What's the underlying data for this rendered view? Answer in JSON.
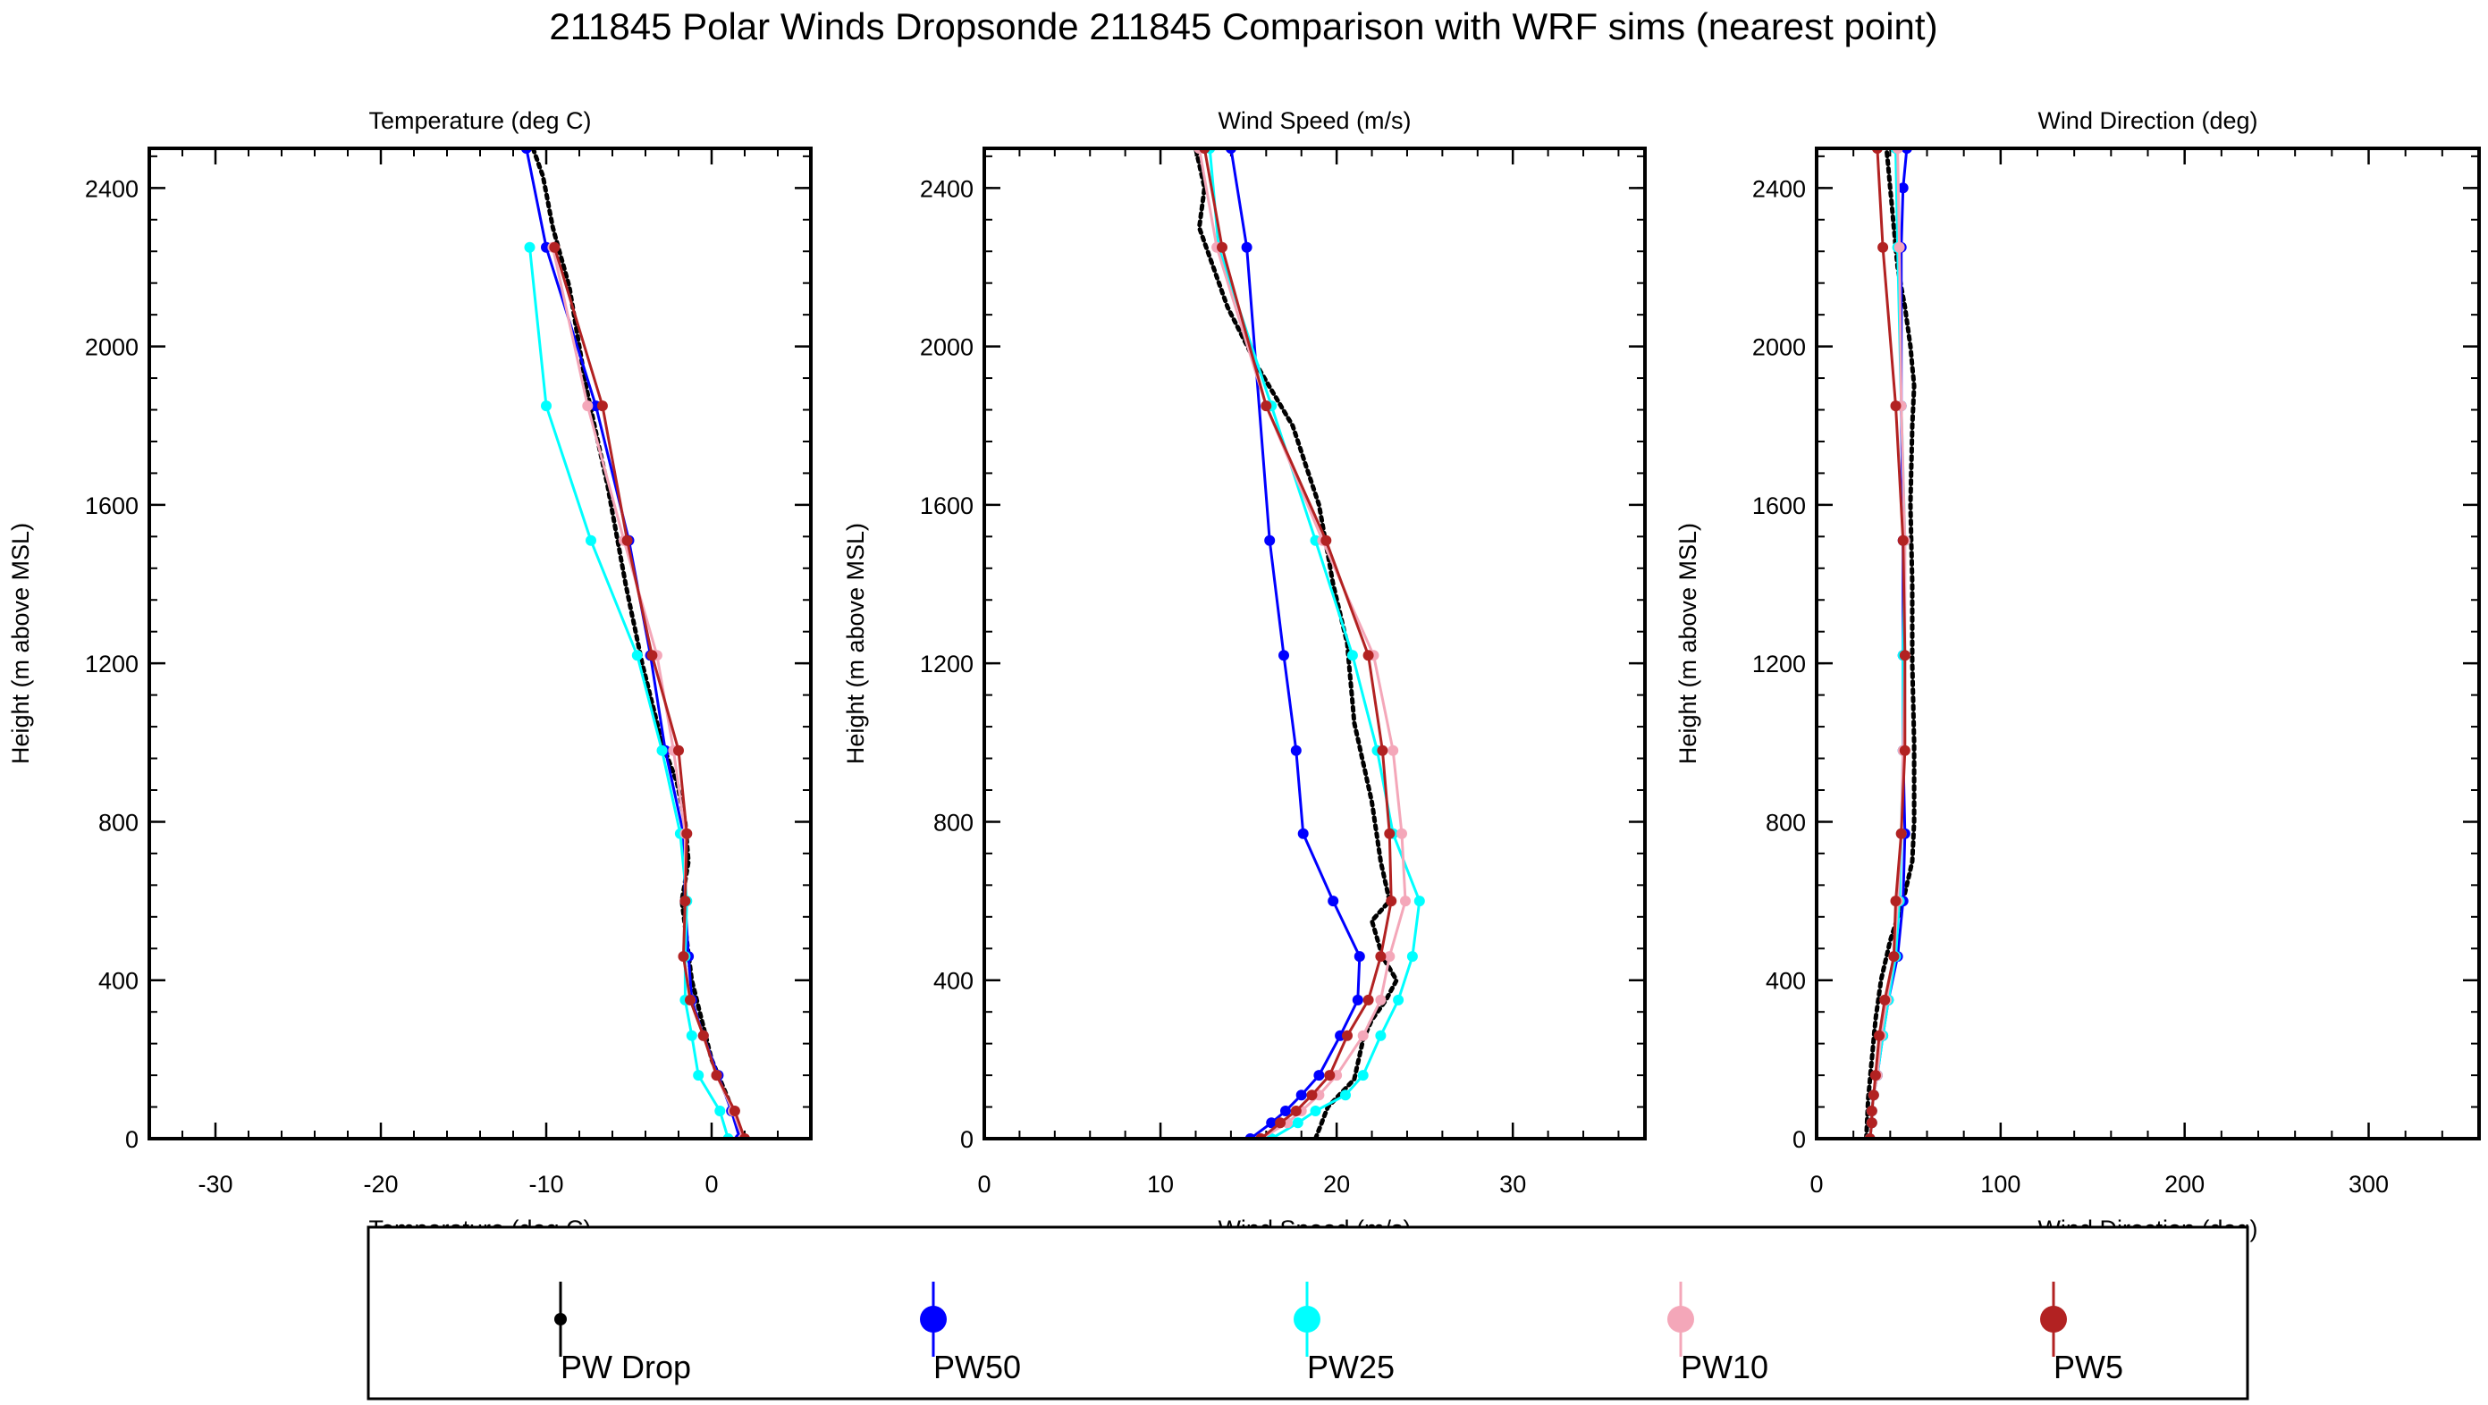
{
  "title": "211845 Polar Winds Dropsonde 211845 Comparison with WRF sims (nearest point)",
  "legend": [
    {
      "key": "drop",
      "label": "PW Drop",
      "color": "#000000"
    },
    {
      "key": "pw50",
      "label": "PW50",
      "color": "#0000ff"
    },
    {
      "key": "pw25",
      "label": "PW25",
      "color": "#00ffff"
    },
    {
      "key": "pw10",
      "label": "PW10",
      "color": "#f4a7b9"
    },
    {
      "key": "pw5",
      "label": "PW5",
      "color": "#b22222"
    }
  ],
  "chart_data": [
    {
      "type": "line",
      "title": "Temperature (deg C)",
      "xlabel": "Temperature (deg C)",
      "ylabel": "Height (m above MSL)",
      "xlim": [
        -34,
        6
      ],
      "ylim": [
        0,
        2500
      ],
      "xticks": [
        -30,
        -20,
        -10,
        0
      ],
      "yticks": [
        0,
        400,
        800,
        1200,
        1600,
        2000,
        2400
      ],
      "series": [
        {
          "key": "drop",
          "x": [
            1.8,
            1.0,
            0.0,
            -0.6,
            -1.2,
            -1.5,
            -1.8,
            -1.4,
            -1.6,
            -2.1,
            -3.0,
            -4.2,
            -5.2,
            -6.3,
            -7.6,
            -8.6,
            -9.6,
            -10.2,
            -10.8
          ],
          "y": [
            0,
            100,
            200,
            300,
            400,
            500,
            600,
            700,
            800,
            900,
            1000,
            1200,
            1400,
            1650,
            1900,
            2150,
            2300,
            2430,
            2500
          ]
        },
        {
          "key": "pw50",
          "x": [
            1.7,
            1.2,
            0.4,
            -0.5,
            -1.2,
            -1.4,
            -1.6,
            -1.7,
            -2.8,
            -3.7,
            -5.0,
            -7.0,
            -10.0,
            -11.2
          ],
          "y": [
            0,
            70,
            160,
            260,
            350,
            460,
            600,
            770,
            980,
            1220,
            1510,
            1850,
            2250,
            2500
          ]
        },
        {
          "key": "pw25",
          "x": [
            1.0,
            0.5,
            -0.8,
            -1.2,
            -1.6,
            -1.6,
            -1.5,
            -1.9,
            -3.0,
            -4.5,
            -7.3,
            -10.0,
            -11.0
          ],
          "y": [
            0,
            70,
            160,
            260,
            350,
            460,
            600,
            770,
            980,
            1220,
            1510,
            1850,
            2250
          ]
        },
        {
          "key": "pw10",
          "x": [
            1.9,
            1.3,
            0.3,
            -0.5,
            -1.3,
            -1.7,
            -1.6,
            -1.6,
            -2.3,
            -3.3,
            -5.3,
            -7.5,
            -9.6
          ],
          "y": [
            0,
            70,
            160,
            260,
            350,
            460,
            600,
            770,
            980,
            1220,
            1510,
            1850,
            2250
          ]
        },
        {
          "key": "pw5",
          "x": [
            2.0,
            1.4,
            0.3,
            -0.5,
            -1.3,
            -1.7,
            -1.6,
            -1.5,
            -2.0,
            -3.6,
            -5.1,
            -6.6,
            -9.5
          ],
          "y": [
            0,
            70,
            160,
            260,
            350,
            460,
            600,
            770,
            980,
            1220,
            1510,
            1850,
            2250
          ]
        }
      ]
    },
    {
      "type": "line",
      "title": "Wind Speed (m/s)",
      "xlabel": "Wind Speed (m/s)",
      "ylabel": "Height (m above MSL)",
      "xlim": [
        0,
        37.5
      ],
      "ylim": [
        0,
        2500
      ],
      "xticks": [
        0,
        10,
        20,
        30
      ],
      "yticks": [
        0,
        400,
        800,
        1200,
        1600,
        2000,
        2400
      ],
      "series": [
        {
          "key": "drop",
          "x": [
            18.8,
            19.5,
            21.0,
            21.5,
            22.0,
            22.8,
            23.4,
            22.6,
            22.0,
            23.0,
            22.5,
            22.0,
            21.0,
            20.6,
            19.8,
            19.0,
            17.5,
            15.5,
            13.8,
            13.0,
            12.2,
            12.5,
            12.0
          ],
          "y": [
            0,
            80,
            150,
            250,
            300,
            350,
            400,
            460,
            550,
            600,
            700,
            850,
            1050,
            1250,
            1400,
            1600,
            1800,
            1950,
            2100,
            2200,
            2300,
            2400,
            2500
          ]
        },
        {
          "key": "pw50",
          "x": [
            15.1,
            16.3,
            17.1,
            18.0,
            19.0,
            20.2,
            21.2,
            21.3,
            19.8,
            18.1,
            17.7,
            17.0,
            16.2,
            14.9,
            14.0
          ],
          "y": [
            0,
            40,
            70,
            110,
            160,
            260,
            350,
            460,
            600,
            770,
            980,
            1220,
            1510,
            2250,
            2500
          ]
        },
        {
          "key": "pw25",
          "x": [
            16.3,
            17.8,
            18.8,
            20.5,
            21.5,
            22.5,
            23.5,
            24.3,
            24.7,
            23.2,
            22.3,
            20.9,
            18.8,
            16.3,
            13.3,
            12.8
          ],
          "y": [
            0,
            40,
            70,
            110,
            160,
            260,
            350,
            460,
            600,
            770,
            980,
            1220,
            1510,
            1850,
            2250,
            2500
          ]
        },
        {
          "key": "pw10",
          "x": [
            15.7,
            17.2,
            18.0,
            19.0,
            20.0,
            21.5,
            22.5,
            23.0,
            23.9,
            23.7,
            23.2,
            22.1,
            19.2,
            16.0,
            13.2,
            12.2
          ],
          "y": [
            0,
            40,
            70,
            110,
            160,
            260,
            350,
            460,
            600,
            770,
            980,
            1220,
            1510,
            1850,
            2250,
            2500
          ]
        },
        {
          "key": "pw5",
          "x": [
            15.7,
            16.8,
            17.7,
            18.6,
            19.6,
            20.6,
            21.8,
            22.5,
            23.1,
            23.0,
            22.6,
            21.8,
            19.4,
            16.0,
            13.5,
            12.5
          ],
          "y": [
            0,
            40,
            70,
            110,
            160,
            260,
            350,
            460,
            600,
            770,
            980,
            1220,
            1510,
            1850,
            2250,
            2500
          ]
        }
      ]
    },
    {
      "type": "line",
      "title": "Wind Direction (deg)",
      "xlabel": "Wind Direction (deg)",
      "ylabel": "Height (m above MSL)",
      "xlim": [
        0,
        360
      ],
      "ylim": [
        0,
        2500
      ],
      "xticks": [
        0,
        100,
        200,
        300
      ],
      "yticks": [
        0,
        400,
        800,
        1200,
        1600,
        2000,
        2400
      ],
      "series": [
        {
          "key": "drop",
          "x": [
            27,
            28,
            30,
            32,
            35,
            40,
            47,
            52,
            53,
            53,
            52,
            52,
            51,
            52,
            53,
            51,
            48,
            44,
            42,
            40,
            38
          ],
          "y": [
            0,
            100,
            200,
            300,
            400,
            500,
            600,
            700,
            800,
            1000,
            1200,
            1400,
            1600,
            1800,
            1900,
            2000,
            2100,
            2200,
            2300,
            2400,
            2500
          ]
        },
        {
          "key": "pw50",
          "x": [
            29,
            30,
            30,
            31,
            33,
            36,
            39,
            44,
            47,
            48,
            47,
            47,
            47,
            46,
            46,
            47,
            49
          ],
          "y": [
            0,
            40,
            70,
            110,
            160,
            260,
            350,
            460,
            600,
            770,
            980,
            1220,
            1510,
            1850,
            2250,
            2400,
            2500
          ]
        },
        {
          "key": "pw25",
          "x": [
            29,
            30,
            30,
            31,
            33,
            36,
            39,
            43,
            45,
            46,
            47,
            47,
            48,
            46,
            44,
            43
          ],
          "y": [
            0,
            40,
            70,
            110,
            160,
            260,
            350,
            460,
            600,
            770,
            980,
            1220,
            1510,
            1850,
            2250,
            2500
          ]
        },
        {
          "key": "pw10",
          "x": [
            29,
            30,
            30,
            31,
            33,
            35,
            38,
            42,
            44,
            46,
            47,
            48,
            48,
            46,
            45,
            44
          ],
          "y": [
            0,
            40,
            70,
            110,
            160,
            260,
            350,
            460,
            600,
            770,
            980,
            1220,
            1510,
            1850,
            2250,
            2500
          ]
        },
        {
          "key": "pw5",
          "x": [
            29,
            30,
            30,
            31,
            32,
            34,
            37,
            42,
            43,
            46,
            48,
            48,
            47,
            43,
            36,
            33
          ],
          "y": [
            0,
            40,
            70,
            110,
            160,
            260,
            350,
            460,
            600,
            770,
            980,
            1220,
            1510,
            1850,
            2250,
            2500
          ]
        }
      ]
    }
  ]
}
